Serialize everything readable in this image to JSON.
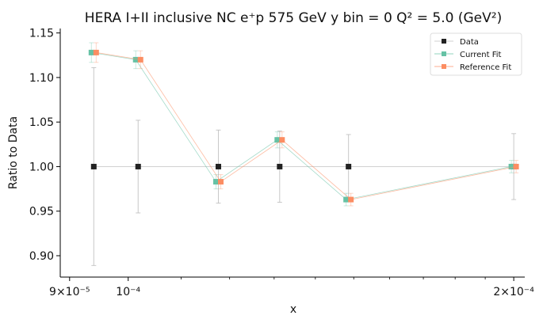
{
  "chart_data": {
    "type": "scatter",
    "title": "HERA I+II inclusive NC e⁺p 575 GeV y bin = 0 Q² = 5.0 (GeV²)",
    "xlabel": "x",
    "ylabel": "Ratio to Data",
    "xscale": "log",
    "xlim": [
      8.85e-05,
      0.000204
    ],
    "ylim": [
      0.876,
      1.155
    ],
    "x_ticks": [
      {
        "value": 9e-05,
        "label": "9×10⁻⁵"
      },
      {
        "value": 0.0001,
        "label": "10⁻⁴"
      },
      {
        "value": 0.0002,
        "label": "2×10⁻⁴"
      }
    ],
    "y_ticks": [
      {
        "value": 0.9,
        "label": "0.90"
      },
      {
        "value": 0.95,
        "label": "0.95"
      },
      {
        "value": 1.0,
        "label": "1.00"
      },
      {
        "value": 1.05,
        "label": "1.05"
      },
      {
        "value": 1.1,
        "label": "1.10"
      },
      {
        "value": 1.15,
        "label": "1.15"
      }
    ],
    "legend_position": "top-right",
    "grid": false,
    "series": [
      {
        "name": "Data",
        "color": "#222222",
        "line_color": "#bdbdbd",
        "marker": "square",
        "x": [
          9.4e-05,
          0.0001018,
          0.0001176,
          0.0001313,
          0.0001486,
          0.0002
        ],
        "y": [
          1.0,
          1.0,
          1.0,
          1.0,
          1.0,
          1.0
        ],
        "yerr": [
          0.111,
          0.052,
          0.041,
          0.04,
          0.036,
          0.037
        ]
      },
      {
        "name": "Current Fit",
        "color": "#66c2a5",
        "line_color": "#66c2a5",
        "marker": "square",
        "x": [
          9.4e-05,
          0.0001018,
          0.0001176,
          0.0001313,
          0.0001486,
          0.0002
        ],
        "y": [
          1.128,
          1.12,
          0.983,
          1.03,
          0.963,
          1.0
        ],
        "yerr": [
          0.011,
          0.01,
          0.008,
          0.009,
          0.007,
          0.007
        ]
      },
      {
        "name": "Reference Fit",
        "color": "#fc8d62",
        "line_color": "#fc8d62",
        "marker": "square",
        "x": [
          9.4e-05,
          0.0001018,
          0.0001176,
          0.0001313,
          0.0001486,
          0.0002
        ],
        "y": [
          1.128,
          1.12,
          0.983,
          1.03,
          0.963,
          1.0
        ],
        "yerr": [
          0.011,
          0.01,
          0.008,
          0.009,
          0.007,
          0.007
        ]
      }
    ]
  }
}
